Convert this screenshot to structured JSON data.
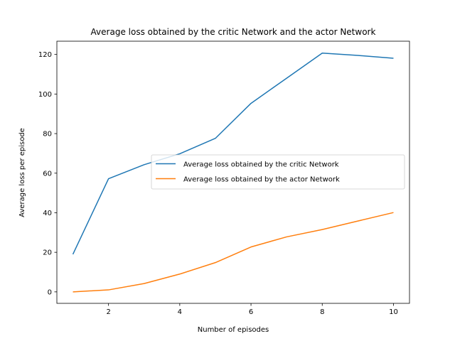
{
  "chart_data": {
    "type": "line",
    "title": "Average loss obtained by the critic Network and the actor Network",
    "xlabel": "Number of episodes",
    "ylabel": "Average loss per episode",
    "xlim": [
      0.55,
      10.45
    ],
    "ylim": [
      -5.8,
      126.7
    ],
    "xticks": [
      2,
      4,
      6,
      8,
      10
    ],
    "yticks": [
      0,
      20,
      40,
      60,
      80,
      100,
      120
    ],
    "x": [
      1,
      2,
      3,
      4,
      5,
      6,
      7,
      8,
      9,
      10
    ],
    "series": [
      {
        "name": "Average loss obtained by the critic Network",
        "color": "#1f77b4",
        "values": [
          19.0,
          57.2,
          64.3,
          69.8,
          77.6,
          95.3,
          108.0,
          120.7,
          119.5,
          118.1
        ]
      },
      {
        "name": "Average loss obtained by the actor Network",
        "color": "#ff7f0e",
        "values": [
          0.0,
          1.0,
          4.2,
          9.0,
          14.8,
          22.7,
          27.8,
          31.5,
          35.8,
          40.1
        ]
      }
    ],
    "legend_position": "center-right",
    "grid": false
  }
}
